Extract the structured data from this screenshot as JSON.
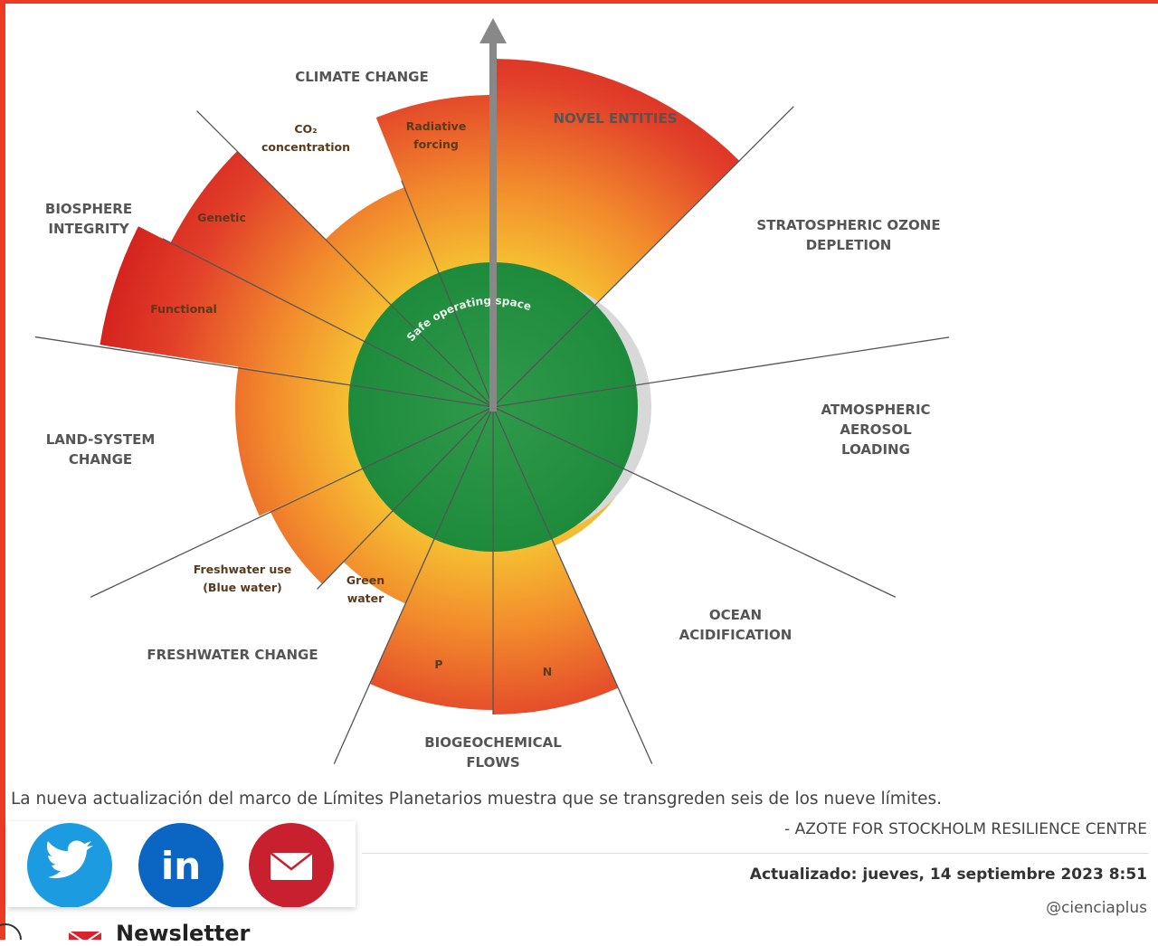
{
  "figure": {
    "labels": [
      [
        "CLIMATE CHANGE"
      ],
      [
        "NOVEL ENTITIES"
      ],
      [
        "STRATOSPHERIC OZONE",
        "DEPLETION"
      ],
      [
        "ATMOSPHERIC",
        "AEROSOL",
        "LOADING"
      ],
      [
        "OCEAN",
        "ACIDIFICATION"
      ],
      [
        "BIOGEOCHEMICAL",
        "FLOWS"
      ],
      [
        "FRESHWATER CHANGE"
      ],
      [
        "LAND-SYSTEM",
        "CHANGE"
      ],
      [
        "BIOSPHERE",
        "INTEGRITY"
      ]
    ],
    "sublabels": [
      [
        "CO₂",
        "concentration"
      ],
      [
        "Radiative",
        "forcing"
      ],
      [
        "Genetic"
      ],
      [
        "Functional"
      ],
      [
        "Freshwater use",
        "(Blue water)"
      ],
      [
        "Green",
        "water"
      ],
      [
        "P"
      ],
      [
        "N"
      ]
    ],
    "center_label": "Safe operating space"
  },
  "caption": "La nueva actualización del marco de Límites Planetarios muestra que se transgreden seis de los nueve límites.",
  "credit": "- AZOTE FOR STOCKHOLM RESILIENCE CENTRE",
  "share": {
    "linkedin": "in"
  },
  "updated": "Actualizado: jueves, 14 septiembre 2023 8:51",
  "author": "@cienciaplus",
  "newsletter": "Newsletter"
}
